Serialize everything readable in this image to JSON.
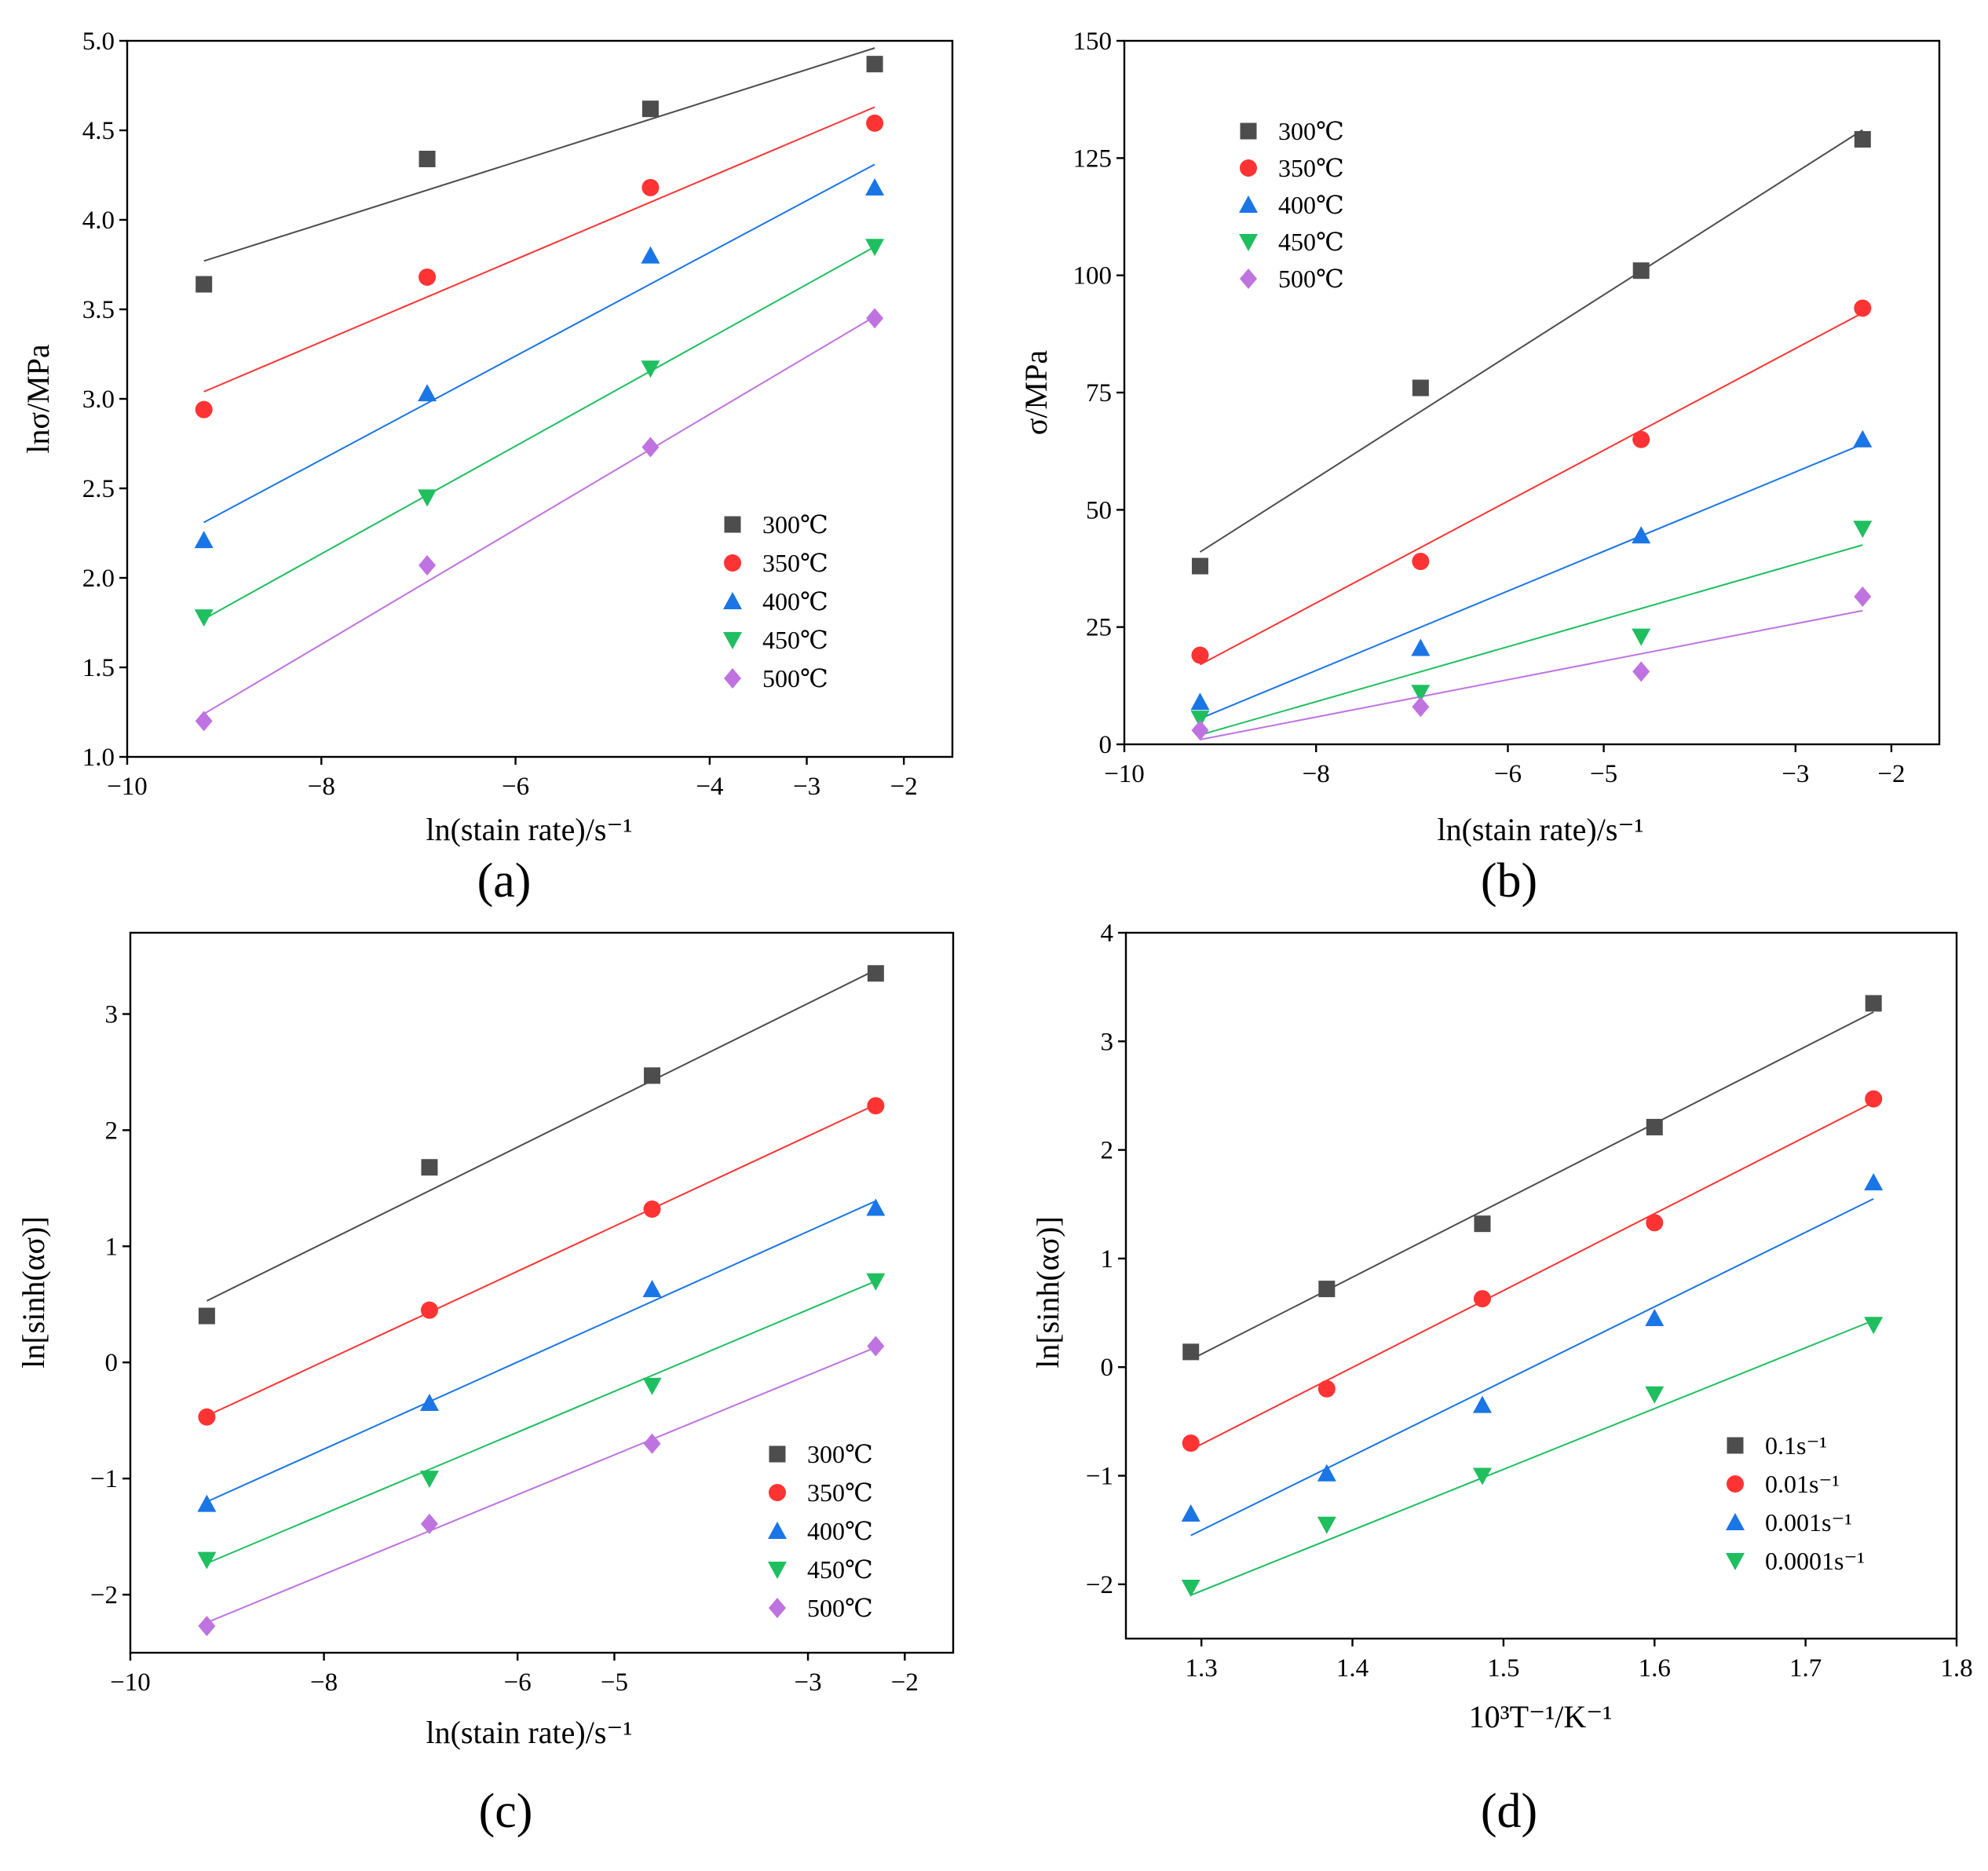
{
  "figure": {
    "background": "#ffffff"
  },
  "chart_data": [
    {
      "panel": "(a)",
      "type": "scatter",
      "xlabel": "ln(stain rate)/s⁻¹",
      "ylabel": "lnσ/MPa",
      "xlim": [
        -10,
        -1.5
      ],
      "ylim": [
        1.0,
        5.0
      ],
      "xticks": [
        -10,
        -8,
        -6,
        -4,
        -3,
        -2
      ],
      "yticks": [
        1.0,
        1.5,
        2.0,
        2.5,
        3.0,
        3.5,
        4.0,
        4.5,
        5.0
      ],
      "xtick_labels": [
        "−10",
        "−8",
        "−6",
        "−4",
        "−3",
        "−2"
      ],
      "ytick_labels": [
        "1.0",
        "1.5",
        "2.0",
        "2.5",
        "3.0",
        "3.5",
        "4.0",
        "4.5",
        "5.0"
      ],
      "x": [
        -9.21,
        -6.91,
        -4.61,
        -2.3
      ],
      "legend_position": "right-middle",
      "series": [
        {
          "name": "300℃",
          "marker": "square",
          "color": "#4d4d4d",
          "values": [
            3.64,
            4.34,
            4.62,
            4.87
          ],
          "fit": [
            3.77,
            4.96
          ]
        },
        {
          "name": "350℃",
          "marker": "circle",
          "color": "#ff3333",
          "values": [
            2.94,
            3.68,
            4.18,
            4.54
          ],
          "fit": [
            3.04,
            4.63
          ]
        },
        {
          "name": "400℃",
          "marker": "triangle-up",
          "color": "#1a75e6",
          "values": [
            2.21,
            3.03,
            3.8,
            4.18
          ],
          "fit": [
            2.31,
            4.31
          ]
        },
        {
          "name": "450℃",
          "marker": "triangle-down",
          "color": "#1fbf5f",
          "values": [
            1.78,
            2.45,
            3.17,
            3.85
          ],
          "fit": [
            1.77,
            3.85
          ]
        },
        {
          "name": "500℃",
          "marker": "diamond",
          "color": "#bf73e0",
          "values": [
            1.2,
            2.07,
            2.73,
            3.45
          ],
          "fit": [
            1.24,
            3.46
          ]
        }
      ]
    },
    {
      "panel": "(b)",
      "type": "scatter",
      "xlabel": "ln(stain rate)/s⁻¹",
      "ylabel": "σ/MPa",
      "xlim": [
        -10,
        -1.5
      ],
      "ylim": [
        0,
        150
      ],
      "xticks": [
        -10,
        -8,
        -6,
        -5,
        -3,
        -2
      ],
      "yticks": [
        0,
        25,
        50,
        75,
        100,
        125,
        150
      ],
      "xtick_labels": [
        "−10",
        "−8",
        "−6",
        "−5",
        "−3",
        "−2"
      ],
      "ytick_labels": [
        "0",
        "25",
        "50",
        "75",
        "100",
        "125",
        "150"
      ],
      "x": [
        -9.21,
        -6.91,
        -4.61,
        -2.3
      ],
      "legend_position": "top-left",
      "series": [
        {
          "name": "300℃",
          "marker": "square",
          "color": "#4d4d4d",
          "values": [
            38,
            76,
            101,
            129
          ],
          "fit": [
            41,
            131
          ]
        },
        {
          "name": "350℃",
          "marker": "circle",
          "color": "#ff3333",
          "values": [
            19,
            39,
            65,
            93
          ],
          "fit": [
            17,
            92
          ]
        },
        {
          "name": "400℃",
          "marker": "triangle-up",
          "color": "#1a75e6",
          "values": [
            9,
            20.5,
            44.5,
            65
          ],
          "fit": [
            5.5,
            64
          ]
        },
        {
          "name": "450℃",
          "marker": "triangle-down",
          "color": "#1fbf5f",
          "values": [
            5.5,
            11,
            23,
            46
          ],
          "fit": [
            2,
            42.5
          ]
        },
        {
          "name": "500℃",
          "marker": "diamond",
          "color": "#bf73e0",
          "values": [
            3,
            8,
            15.5,
            31.5
          ],
          "fit": [
            1,
            28.5
          ]
        }
      ]
    },
    {
      "panel": "(c)",
      "type": "scatter",
      "xlabel": "ln(stain rate)/s⁻¹",
      "ylabel": "ln[sinh(ασ)]",
      "xlim": [
        -10,
        -1.5
      ],
      "ylim": [
        -2.5,
        3.7
      ],
      "xticks": [
        -10,
        -8,
        -6,
        -5,
        -3,
        -2
      ],
      "yticks": [
        -2,
        -1,
        0,
        1,
        2,
        3
      ],
      "xtick_labels": [
        "−10",
        "−8",
        "−6",
        "−5",
        "−3",
        "−2"
      ],
      "ytick_labels": [
        "−2",
        "−1",
        "0",
        "1",
        "2",
        "3"
      ],
      "x": [
        -9.21,
        -6.91,
        -4.61,
        -2.3
      ],
      "legend_position": "bottom-right",
      "series": [
        {
          "name": "300℃",
          "marker": "square",
          "color": "#4d4d4d",
          "values": [
            0.4,
            1.68,
            2.47,
            3.35
          ],
          "fit": [
            0.53,
            3.38
          ]
        },
        {
          "name": "350℃",
          "marker": "circle",
          "color": "#ff3333",
          "values": [
            -0.47,
            0.45,
            1.32,
            2.21
          ],
          "fit": [
            -0.46,
            2.22
          ]
        },
        {
          "name": "400℃",
          "marker": "triangle-up",
          "color": "#1a75e6",
          "values": [
            -1.22,
            -0.35,
            0.63,
            1.33
          ],
          "fit": [
            -1.2,
            1.39
          ]
        },
        {
          "name": "450℃",
          "marker": "triangle-down",
          "color": "#1fbf5f",
          "values": [
            -1.7,
            -1.0,
            -0.2,
            0.7
          ],
          "fit": [
            -1.73,
            0.7
          ]
        },
        {
          "name": "500℃",
          "marker": "diamond",
          "color": "#bf73e0",
          "values": [
            -2.27,
            -1.39,
            -0.7,
            0.14
          ],
          "fit": [
            -2.24,
            0.13
          ]
        }
      ]
    },
    {
      "panel": "(d)",
      "type": "scatter",
      "xlabel": "10³T⁻¹/K⁻¹",
      "ylabel": "ln[sinh(ασ)]",
      "xlim": [
        1.25,
        1.8
      ],
      "ylim": [
        -2.5,
        4.0
      ],
      "xticks": [
        1.3,
        1.4,
        1.5,
        1.6,
        1.7,
        1.8
      ],
      "yticks": [
        -2,
        -1,
        0,
        1,
        2,
        3,
        4
      ],
      "xtick_labels": [
        "1.3",
        "1.4",
        "1.5",
        "1.6",
        "1.7",
        "1.8"
      ],
      "ytick_labels": [
        "−2",
        "−1",
        "0",
        "1",
        "2",
        "3",
        "4"
      ],
      "x": [
        1.293,
        1.383,
        1.486,
        1.6,
        1.745
      ],
      "legend_position": "bottom-right",
      "series": [
        {
          "name": "0.1s⁻¹",
          "marker": "square",
          "color": "#4d4d4d",
          "values": [
            0.14,
            0.72,
            1.32,
            2.21,
            3.35
          ],
          "fit": [
            0.07,
            3.27
          ]
        },
        {
          "name": "0.01s⁻¹",
          "marker": "circle",
          "color": "#ff3333",
          "values": [
            -0.7,
            -0.2,
            0.63,
            1.33,
            2.47
          ],
          "fit": [
            -0.76,
            2.44
          ]
        },
        {
          "name": "0.001s⁻¹",
          "marker": "triangle-up",
          "color": "#1a75e6",
          "values": [
            -1.35,
            -0.98,
            -0.35,
            0.45,
            1.7
          ],
          "fit": [
            -1.55,
            1.55
          ]
        },
        {
          "name": "0.0001s⁻¹",
          "marker": "triangle-down",
          "color": "#1fbf5f",
          "values": [
            -2.03,
            -1.45,
            -1.0,
            -0.25,
            0.39
          ],
          "fit": [
            -2.1,
            0.43
          ]
        }
      ]
    }
  ]
}
